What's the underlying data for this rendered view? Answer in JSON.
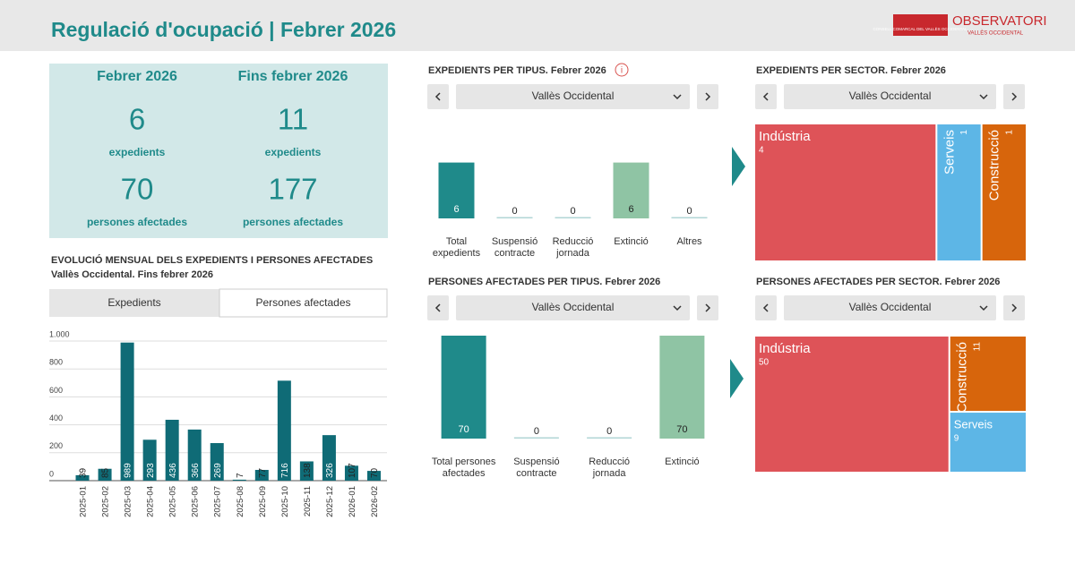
{
  "header": {
    "title": "Regulació d'ocupació | Febrer 2026",
    "logo": {
      "org": "CONSELL COMARCAL DEL VALLÈS OCCIDENTAL",
      "name": "OBSERVATORI",
      "region": "VALLÈS OCCIDENTAL"
    }
  },
  "kpi": [
    {
      "period": "Febrer 2026",
      "expedients": 6,
      "expedients_label": "expedients",
      "persones": 70,
      "persones_label": "persones afectades"
    },
    {
      "period": "Fins febrer 2026",
      "expedients": 11,
      "expedients_label": "expedients",
      "persones": 177,
      "persones_label": "persones afectades"
    }
  ],
  "chart_data": [
    {
      "type": "bar",
      "title": "EVOLUCIÓ MENSUAL DELS EXPEDIENTS I PERSONES AFECTADES",
      "subtitle": "Vallès Occidental. Fins febrer 2026",
      "tabs": [
        "Expedients",
        "Persones afectades"
      ],
      "categories": [
        "2025-01",
        "2025-02",
        "2025-03",
        "2025-04",
        "2025-05",
        "2025-06",
        "2025-07",
        "2025-08",
        "2025-09",
        "2025-10",
        "2025-11",
        "2025-12",
        "2026-01",
        "2026-02"
      ],
      "values": [
        39,
        85,
        989,
        293,
        436,
        366,
        269,
        7,
        77,
        716,
        138,
        326,
        107,
        70
      ],
      "color": "#0f6b76",
      "ylim": [
        0,
        1000
      ],
      "yticks": [
        0,
        200,
        400,
        600,
        800,
        {
          "value": 1000,
          "label": "1.000"
        }
      ],
      "grid": true
    },
    {
      "type": "bar",
      "title": "EXPEDIENTS PER TIPUS. Febrer 2026",
      "selector": "Vallès Occidental",
      "categories": [
        "Total expedients",
        "Suspensió contracte",
        "Reducció jornada",
        "Extinció",
        "Altres"
      ],
      "values": [
        6,
        0,
        0,
        6,
        0
      ],
      "colors": [
        "#1f8a8a",
        "#1f8a8a",
        "#1f8a8a",
        "#8fc4a4",
        "#1f8a8a"
      ],
      "ylim": [
        0,
        10
      ]
    },
    {
      "type": "bar",
      "title": "PERSONES AFECTADES PER TIPUS. Febrer 2026",
      "selector": "Vallès Occidental",
      "categories": [
        "Total persones afectades",
        "Suspensió contracte",
        "Reducció jornada",
        "Extinció"
      ],
      "values": [
        70,
        0,
        0,
        70
      ],
      "colors": [
        "#1f8a8a",
        "#1f8a8a",
        "#1f8a8a",
        "#8fc4a4"
      ],
      "ylim": [
        0,
        70
      ]
    },
    {
      "type": "treemap",
      "title": "EXPEDIENTS PER SECTOR. Febrer 2026",
      "selector": "Vallès Occidental",
      "categories": [
        "Indústria",
        "Serveis",
        "Construcció"
      ],
      "values": [
        4,
        1,
        1
      ],
      "colors": [
        "#de5358",
        "#5db6e6",
        "#d7650c"
      ]
    },
    {
      "type": "treemap",
      "title": "PERSONES AFECTADES PER SECTOR. Febrer 2026",
      "selector": "Vallès Occidental",
      "categories": [
        "Indústria",
        "Construcció",
        "Serveis"
      ],
      "values": [
        50,
        11,
        9
      ],
      "colors": [
        "#de5358",
        "#d7650c",
        "#5db6e6"
      ]
    }
  ]
}
